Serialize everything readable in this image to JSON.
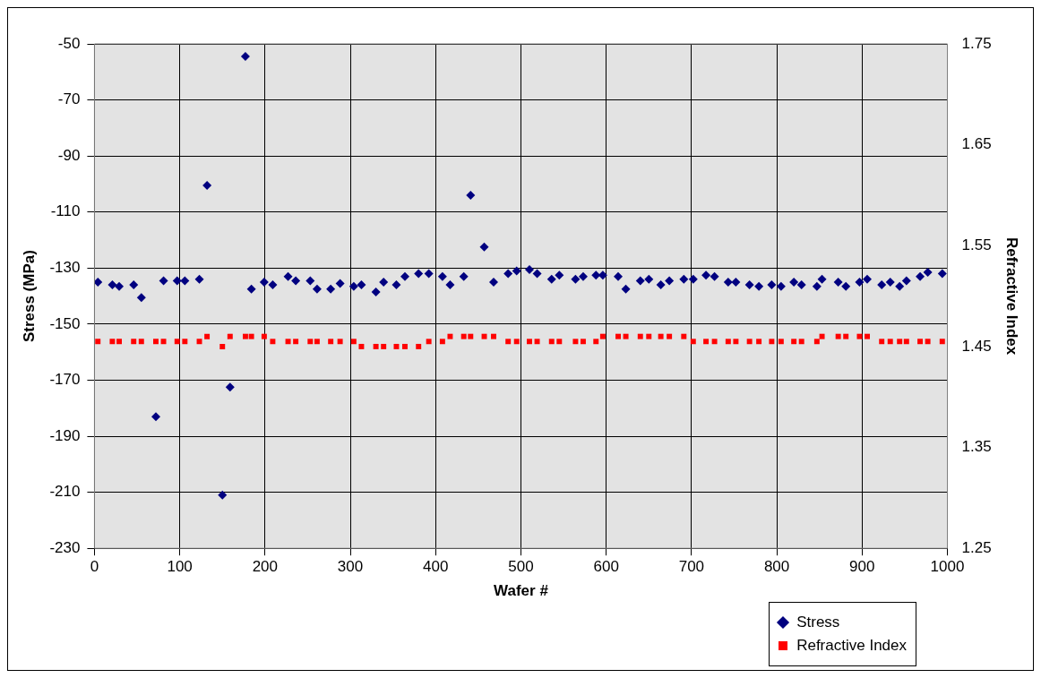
{
  "chart_data": {
    "type": "scatter",
    "xlabel": "Wafer #",
    "ylabel": "Stress (MPa)",
    "y2label": "Refractive Index",
    "xlim": [
      0,
      1000
    ],
    "xticks": [
      0,
      100,
      200,
      300,
      400,
      500,
      600,
      700,
      800,
      900,
      1000
    ],
    "ylim": [
      -230,
      -50
    ],
    "yticks": [
      -230,
      -210,
      -190,
      -170,
      -150,
      -130,
      -110,
      -90,
      -70,
      -50
    ],
    "y2lim": [
      1.25,
      1.75
    ],
    "y2ticks": [
      1.25,
      1.35,
      1.45,
      1.55,
      1.65,
      1.75
    ],
    "grid": true,
    "legend": "bottom right",
    "series": [
      {
        "name": "Stress",
        "color": "#000080",
        "marker": "diamond",
        "x": [
          4,
          21,
          29,
          46,
          55,
          72,
          81,
          97,
          106,
          123,
          132,
          150,
          159,
          177,
          184,
          199,
          209,
          227,
          236,
          253,
          261,
          277,
          288,
          304,
          313,
          330,
          339,
          354,
          364,
          380,
          392,
          408,
          417,
          433,
          441,
          457,
          468,
          485,
          495,
          510,
          519,
          536,
          545,
          564,
          573,
          588,
          596,
          614,
          623,
          640,
          650,
          664,
          674,
          691,
          702,
          717,
          727,
          743,
          752,
          768,
          779,
          794,
          805,
          820,
          829,
          847,
          853,
          872,
          881,
          897,
          906,
          923,
          933,
          944,
          952,
          968,
          977,
          994
        ],
        "values": [
          -135,
          -136,
          -136.5,
          -136,
          -140.5,
          -183,
          -134.5,
          -134.5,
          -134.5,
          -134,
          -100.5,
          -211,
          -172.5,
          -54.5,
          -137.5,
          -135,
          -136,
          -133,
          -134.5,
          -134.5,
          -137.5,
          -137.5,
          -135.5,
          -136.5,
          -136,
          -138.5,
          -135,
          -136,
          -133,
          -132,
          -132,
          -133,
          -136,
          -133,
          -104,
          -122.5,
          -135,
          -132,
          -131,
          -130.5,
          -132,
          -134,
          -132.5,
          -134,
          -133,
          -132.5,
          -132.5,
          -133,
          -137.5,
          -134.5,
          -134,
          -136,
          -134.5,
          -134,
          -134,
          -132.5,
          -133,
          -135,
          -135,
          -136,
          -136.5,
          -136,
          -136.5,
          -135,
          -136,
          -136.5,
          -134,
          -135,
          -136.5,
          -135,
          -134,
          -136,
          -135,
          -136.5,
          -134.5,
          -133,
          -131.5,
          -132
        ]
      },
      {
        "name": "Refractive Index",
        "color": "#ff0000",
        "marker": "square",
        "axis": "y2",
        "x": [
          4,
          21,
          29,
          46,
          55,
          72,
          81,
          97,
          106,
          123,
          132,
          150,
          159,
          177,
          184,
          199,
          209,
          227,
          236,
          253,
          261,
          277,
          288,
          304,
          313,
          330,
          339,
          354,
          364,
          380,
          392,
          408,
          417,
          433,
          441,
          457,
          468,
          485,
          495,
          510,
          519,
          536,
          545,
          564,
          573,
          588,
          596,
          614,
          623,
          640,
          650,
          664,
          674,
          691,
          702,
          717,
          727,
          743,
          752,
          768,
          779,
          794,
          805,
          820,
          829,
          847,
          853,
          872,
          881,
          897,
          906,
          923,
          933,
          944,
          952,
          968,
          977,
          994
        ],
        "values": [
          1.455,
          1.455,
          1.455,
          1.455,
          1.455,
          1.455,
          1.455,
          1.455,
          1.455,
          1.455,
          1.46,
          1.45,
          1.46,
          1.46,
          1.46,
          1.46,
          1.455,
          1.455,
          1.455,
          1.455,
          1.455,
          1.455,
          1.455,
          1.455,
          1.45,
          1.45,
          1.45,
          1.45,
          1.45,
          1.45,
          1.455,
          1.455,
          1.46,
          1.46,
          1.46,
          1.46,
          1.46,
          1.455,
          1.455,
          1.455,
          1.455,
          1.455,
          1.455,
          1.455,
          1.455,
          1.455,
          1.46,
          1.46,
          1.46,
          1.46,
          1.46,
          1.46,
          1.46,
          1.46,
          1.455,
          1.455,
          1.455,
          1.455,
          1.455,
          1.455,
          1.455,
          1.455,
          1.455,
          1.455,
          1.455,
          1.455,
          1.46,
          1.46,
          1.46,
          1.46,
          1.46,
          1.455,
          1.455,
          1.455,
          1.455,
          1.455,
          1.455,
          1.455
        ]
      }
    ]
  }
}
